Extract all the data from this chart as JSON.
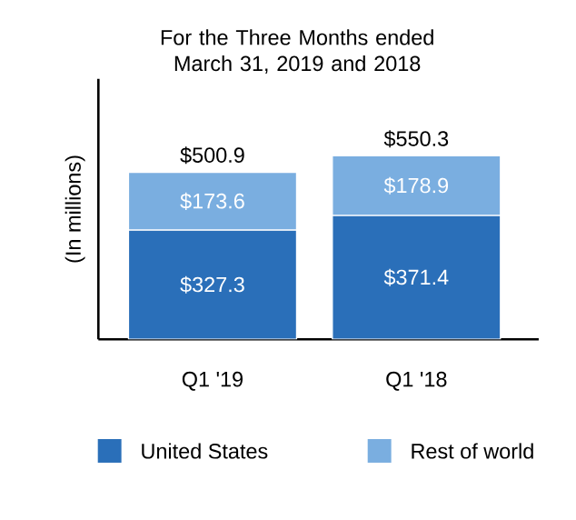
{
  "chart_data": {
    "type": "bar",
    "stacked": true,
    "title": "For the Three Months ended March 31, 2019 and 2018",
    "ylabel": "(In millions)",
    "categories": [
      "Q1 '19",
      "Q1 '18"
    ],
    "series": [
      {
        "name": "United States",
        "color": "#2a6fb9",
        "values": [
          327.3,
          371.4
        ],
        "value_labels": [
          "$327.3",
          "$371.4"
        ]
      },
      {
        "name": "Rest of world",
        "color": "#7aaee0",
        "values": [
          173.6,
          178.9
        ],
        "value_labels": [
          "$173.6",
          "$178.9"
        ]
      }
    ],
    "totals": [
      "$500.9",
      "$550.3"
    ],
    "legend": "bottom"
  }
}
